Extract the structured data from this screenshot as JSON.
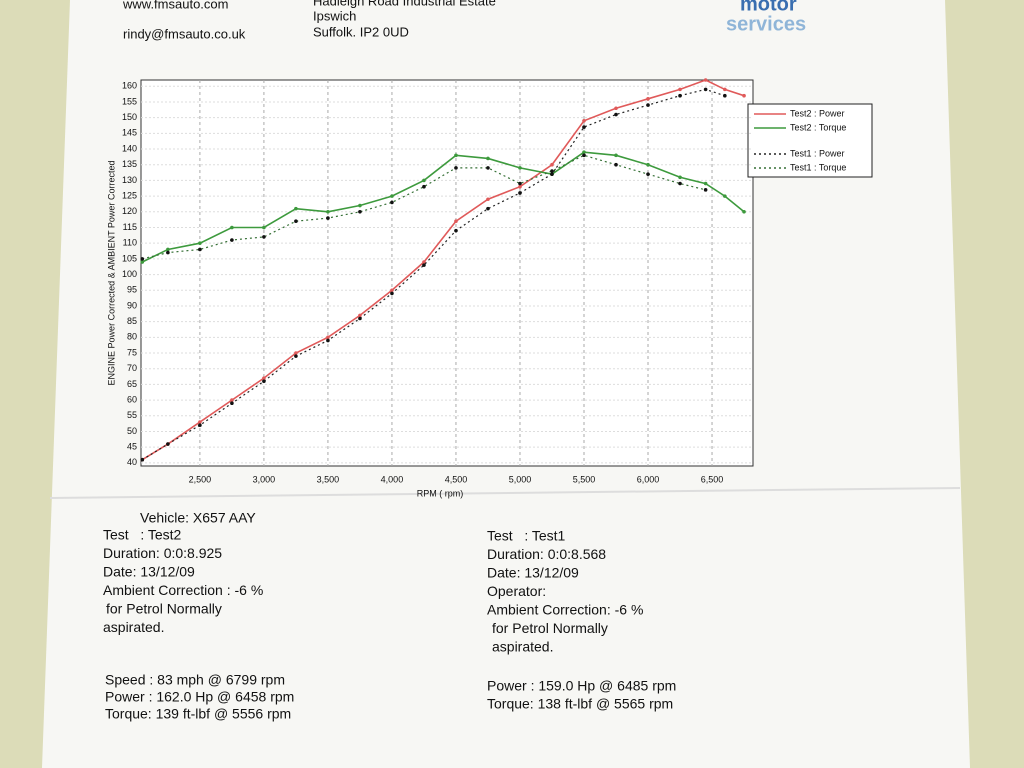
{
  "header": {
    "website": "www.fmsauto.com",
    "email": "rindy@fmsauto.co.uk",
    "address": [
      "Hadleigh Road Industrial Estate",
      "Ipswich",
      "Suffolk. IP2 0UD"
    ],
    "logo": [
      "motor",
      "services"
    ]
  },
  "chart_data": {
    "type": "line",
    "x_label": "RPM ( rpm)",
    "y_label": "ENGINE Power Corrected & AMBIENT Power Corrected",
    "x": [
      2050,
      2250,
      2500,
      2750,
      3000,
      3250,
      3500,
      3750,
      4000,
      4250,
      4500,
      4750,
      5000,
      5250,
      5500,
      5750,
      6000,
      6250,
      6450,
      6600,
      6750
    ],
    "series": [
      {
        "name": "Test2 : Power",
        "color": "#e05a5a",
        "style": "solid",
        "values": [
          41,
          46,
          53,
          60,
          67,
          75,
          80,
          87,
          95,
          104,
          117,
          124,
          128,
          135,
          149,
          153,
          156,
          159,
          162,
          159,
          157
        ]
      },
      {
        "name": "Test2 : Torque",
        "color": "#3d9a3d",
        "style": "solid",
        "values": [
          104,
          108,
          110,
          115,
          115,
          121,
          120,
          122,
          125,
          130,
          138,
          137,
          134,
          132,
          139,
          138,
          135,
          131,
          129,
          125,
          120
        ]
      },
      {
        "name": "Test1 : Power",
        "color": "#222222",
        "style": "dotted",
        "values": [
          41,
          46,
          52,
          59,
          66,
          74,
          79,
          86,
          94,
          103,
          114,
          121,
          126,
          132,
          147,
          151,
          154,
          157,
          159,
          157,
          null
        ]
      },
      {
        "name": "Test1 : Torque",
        "color": "#356f35",
        "style": "dotted",
        "values": [
          105,
          107,
          108,
          111,
          112,
          117,
          118,
          120,
          123,
          128,
          134,
          134,
          129,
          133,
          138,
          135,
          132,
          129,
          127,
          null,
          null
        ]
      }
    ],
    "xlim": [
      2040,
      6820
    ],
    "xticks": [
      {
        "value": 2500,
        "label": "2,500"
      },
      {
        "value": 3000,
        "label": "3,000"
      },
      {
        "value": 3500,
        "label": "3,500"
      },
      {
        "value": 4000,
        "label": "4,000"
      },
      {
        "value": 4500,
        "label": "4,500"
      },
      {
        "value": 5000,
        "label": "5,000"
      },
      {
        "value": 5500,
        "label": "5,500"
      },
      {
        "value": 6000,
        "label": "6,000"
      },
      {
        "value": 6500,
        "label": "6,500"
      }
    ],
    "ylim": [
      39,
      162
    ],
    "yticks": [
      40,
      45,
      50,
      55,
      60,
      65,
      70,
      75,
      80,
      85,
      90,
      95,
      100,
      105,
      110,
      115,
      120,
      125,
      130,
      135,
      140,
      145,
      150,
      155,
      160
    ],
    "grid": true,
    "legend": "right"
  },
  "report": {
    "vehicle": "Vehicle: X657 AAY",
    "test2": [
      "Test   : Test2",
      "Duration: 0:0:8.925",
      "Date: 13/12/09",
      "Ambient Correction : -6 %",
      "for Petrol Normally",
      "aspirated."
    ],
    "test1": [
      "Test   : Test1",
      "Duration: 0:0:8.568",
      "Date: 13/12/09",
      "Operator:",
      "Ambient Correction: -6 %",
      "for Petrol Normally",
      "aspirated."
    ],
    "test2_results": [
      "Speed : 83 mph @ 6799 rpm",
      "Power : 162.0 Hp @ 6458 rpm",
      "Torque: 139 ft-lbf @ 5556 rpm"
    ],
    "test1_results": [
      "Power : 159.0 Hp @ 6485 rpm",
      "Torque: 138 ft-lbf @ 5565 rpm"
    ]
  }
}
